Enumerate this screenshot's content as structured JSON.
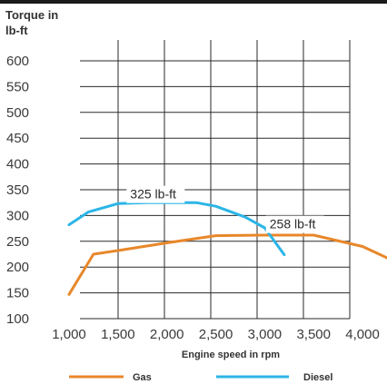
{
  "chart_data": {
    "type": "line",
    "ylabel_line1": "Torque in",
    "ylabel_line2": "lb-ft",
    "xlabel": "Engine speed in rpm",
    "yticks": [
      100,
      150,
      200,
      250,
      300,
      350,
      400,
      450,
      500,
      550,
      600
    ],
    "xticks": [
      1000,
      1500,
      2000,
      2500,
      3000,
      3500,
      4000
    ],
    "xtick_labels": [
      "1,000",
      "1,500",
      "2,000",
      "2,500",
      "3,000",
      "3,500",
      "4,000"
    ],
    "ylim": [
      100,
      600
    ],
    "xlim": [
      1000,
      4250
    ],
    "grid": true,
    "legend_position": "bottom",
    "series": [
      {
        "name": "Gas",
        "color": "#e8872a",
        "x": [
          1000,
          1250,
          1500,
          2000,
          2500,
          3000,
          3500,
          4000,
          4250
        ],
        "y": [
          147,
          225,
          232,
          247,
          261,
          262,
          262,
          240,
          218
        ]
      },
      {
        "name": "Diesel",
        "color": "#2bb5e6",
        "x": [
          1000,
          1200,
          1500,
          1800,
          2300,
          2500,
          2800,
          3000,
          3200
        ],
        "y": [
          282,
          307,
          323,
          325,
          325,
          318,
          297,
          276,
          224
        ]
      }
    ],
    "annotations": [
      {
        "text": "325 lb-ft",
        "series": "Diesel",
        "x": 1625,
        "y": 333
      },
      {
        "text": "258 lb-ft",
        "series": "Gas",
        "x": 3050,
        "y": 275
      }
    ]
  }
}
